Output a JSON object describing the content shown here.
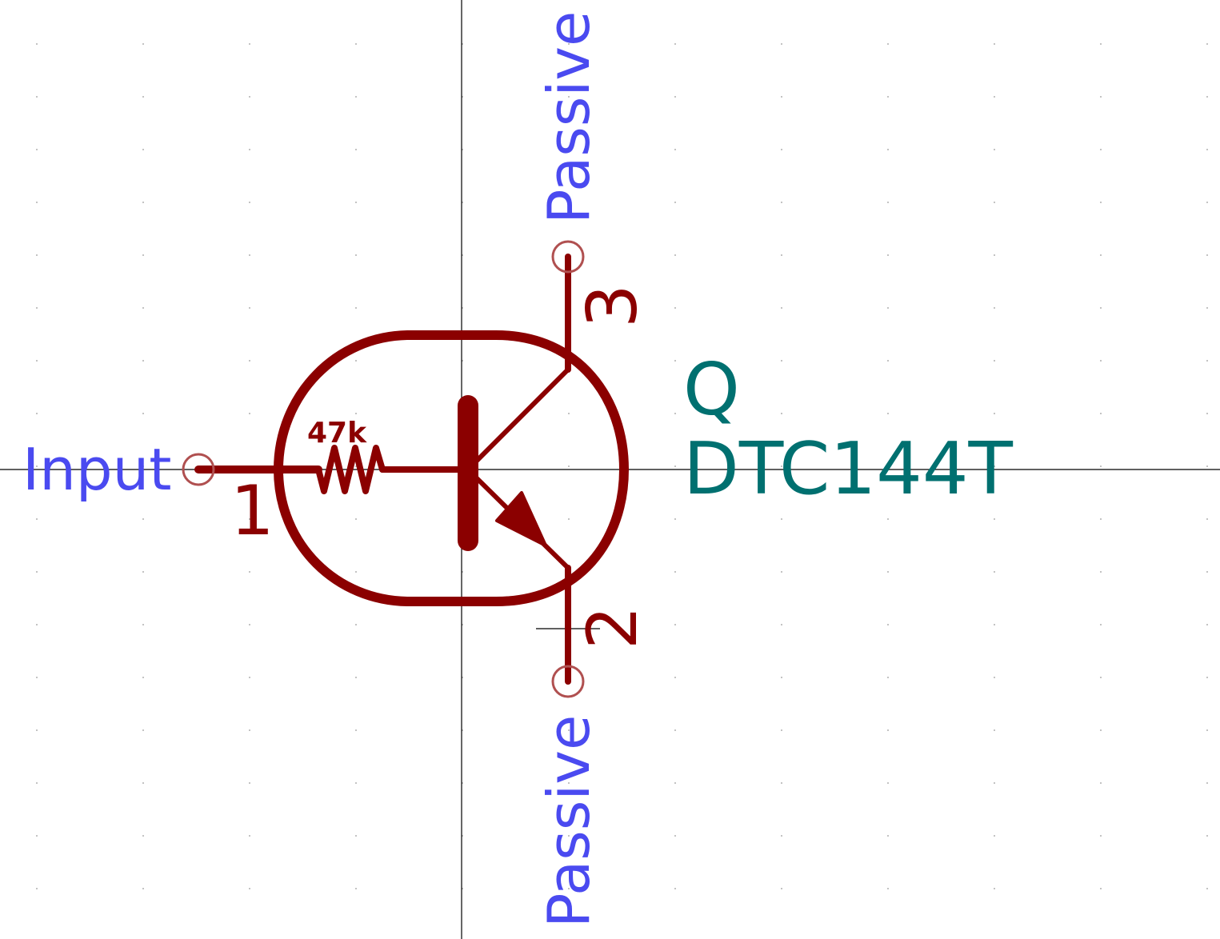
{
  "colors": {
    "background": "#ffffff",
    "symbol": "#8b0000",
    "pin_type_text": "#4a4af0",
    "reference_text": "#007070",
    "crosshair": "#000000",
    "grid_dots": "#b0b0b0",
    "pin_end_circle": "#b05050"
  },
  "symbol": {
    "reference": "Q",
    "value": "DTC144T",
    "resistor_value": "47k"
  },
  "pins": [
    {
      "number": "1",
      "type": "Input"
    },
    {
      "number": "3",
      "type": "Passive"
    },
    {
      "number": "2",
      "type": "Passive"
    }
  ],
  "icons": {
    "transistor": "npn-digital-transistor-icon",
    "resistor": "resistor-icon"
  }
}
